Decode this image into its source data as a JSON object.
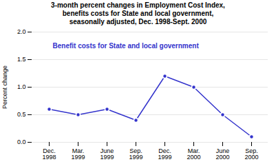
{
  "chart_data": {
    "type": "line",
    "title": "3-month percent changes in Employment Cost Index,\nbenefits costs for State and local government,\nseasonally adjusted, Dec. 1998-Sept. 2000",
    "categories": [
      "Dec.\n1998",
      "Mar.\n1999",
      "June\n1999",
      "Sep.\n1999",
      "Dec.\n1999",
      "Mar.\n2000",
      "June\n2000",
      "Sep.\n2000"
    ],
    "values": [
      0.6,
      0.5,
      0.6,
      0.4,
      1.2,
      1.0,
      0.5,
      0.1
    ],
    "color": "#3333CC",
    "marker": "circle",
    "ylabel": "Percent change",
    "ylim": [
      0.0,
      2.0
    ],
    "yticks": [
      {
        "value": 0,
        "label": "0.0"
      },
      0.5,
      {
        "value": 1,
        "label": "1.0"
      },
      1.5,
      {
        "value": 2,
        "label": "2.0"
      }
    ],
    "grid": true,
    "annotation": {
      "text": "Benefit costs for State and local government",
      "color": "#3333CC"
    }
  }
}
